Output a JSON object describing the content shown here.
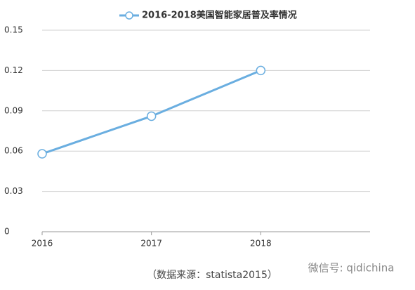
{
  "chart_data": {
    "type": "line",
    "x": [
      2016,
      2017,
      2018
    ],
    "series": [
      {
        "name": "2016-2018美国智能家居普及率情况",
        "color": "#6aaee0",
        "values": [
          0.058,
          0.086,
          0.12
        ]
      }
    ],
    "xlim": [
      2016,
      2019
    ],
    "xticks": [
      2016,
      2017,
      2018
    ],
    "ylim": [
      0,
      0.15
    ],
    "yticks": [
      0,
      0.03,
      0.06,
      0.09,
      0.12,
      0.15
    ],
    "grid": true,
    "legend": "top",
    "source": "（数据来源：statista2015）",
    "watermark": "微信号: qidichina"
  }
}
